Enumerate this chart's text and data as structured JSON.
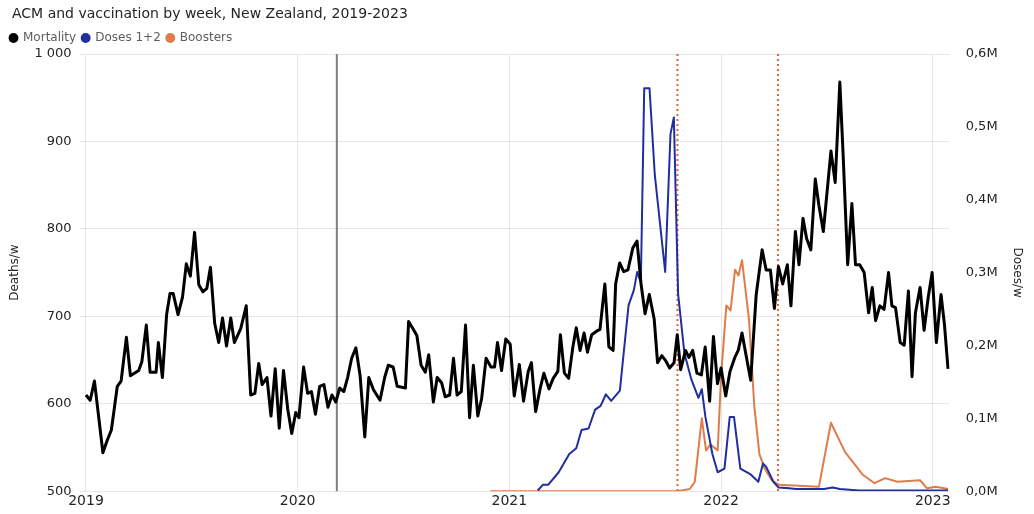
{
  "chart_data": {
    "type": "line",
    "title": "ACM and vaccination by week, New Zealand, 2019-2023",
    "ylabel": "Deaths/w",
    "y2label": "Doses/w",
    "xlim": [
      2018.97,
      2023.08
    ],
    "xticks": [
      2019,
      2020,
      2021,
      2022,
      2023
    ],
    "ylim": [
      500,
      1000
    ],
    "yticks": [
      500,
      600,
      700,
      800,
      900,
      {
        "value": 1000,
        "label": "1 000"
      }
    ],
    "y2lim": [
      0,
      0.6
    ],
    "y2ticks": [
      {
        "value": 0,
        "label": "0,0M"
      },
      {
        "value": 0.1,
        "label": "0,1M"
      },
      {
        "value": 0.2,
        "label": "0,2M"
      },
      {
        "value": 0.3,
        "label": "0,3M"
      },
      {
        "value": 0.4,
        "label": "0,4M"
      },
      {
        "value": 0.5,
        "label": "0,5M"
      },
      {
        "value": 0.6,
        "label": "0,6M"
      }
    ],
    "grid": true,
    "legend": "top left",
    "marker": "none",
    "line_style": "solid",
    "ref_lines": [
      {
        "axis": "x",
        "value": 2020.185,
        "color": "#808080",
        "line_style": "solid"
      },
      {
        "axis": "x",
        "value": 2021.794,
        "color": "#e0653a",
        "line_style": "dotted"
      },
      {
        "axis": "x",
        "value": 2022.269,
        "color": "#e0653a",
        "line_style": "dotted"
      }
    ],
    "series": [
      {
        "name": "Mortality",
        "color": "#000000",
        "x": [
          2019.0,
          2019.02,
          2019.04,
          2019.08,
          2019.1,
          2019.12,
          2019.148,
          2019.166,
          2019.191,
          2019.21,
          2019.249,
          2019.264,
          2019.285,
          2019.303,
          2019.331,
          2019.342,
          2019.361,
          2019.381,
          2019.397,
          2019.412,
          2019.435,
          2019.456,
          2019.474,
          2019.493,
          2019.513,
          2019.533,
          2019.552,
          2019.571,
          2019.588,
          2019.608,
          2019.627,
          2019.645,
          2019.664,
          2019.684,
          2019.701,
          2019.731,
          2019.757,
          2019.778,
          2019.798,
          2019.816,
          2019.832,
          2019.855,
          2019.874,
          2019.894,
          2019.913,
          2019.933,
          2019.953,
          2019.972,
          2019.991,
          2020.006,
          2020.028,
          2020.047,
          2020.065,
          2020.084,
          2020.104,
          2020.124,
          2020.143,
          2020.162,
          2020.18,
          2020.199,
          2020.218,
          2020.236,
          2020.255,
          2020.275,
          2020.295,
          2020.317,
          2020.336,
          2020.358,
          2020.389,
          2020.411,
          2020.428,
          2020.451,
          2020.47,
          2020.509,
          2020.524,
          2020.544,
          2020.563,
          2020.583,
          2020.603,
          2020.619,
          2020.641,
          2020.659,
          2020.68,
          2020.697,
          2020.718,
          2020.736,
          2020.753,
          2020.773,
          2020.793,
          2020.812,
          2020.83,
          2020.851,
          2020.869,
          2020.89,
          2020.913,
          2020.93,
          2020.944,
          2020.963,
          2020.983,
          2021.004,
          2021.023,
          2021.047,
          2021.067,
          2021.089,
          2021.104,
          2021.124,
          2021.145,
          2021.163,
          2021.187,
          2021.207,
          2021.229,
          2021.241,
          2021.26,
          2021.28,
          2021.3,
          2021.316,
          2021.334,
          2021.353,
          2021.369,
          2021.389,
          2021.412,
          2021.428,
          2021.451,
          2021.47,
          2021.49,
          2021.502,
          2021.521,
          2021.54,
          2021.56,
          2021.583,
          2021.603,
          2021.622,
          2021.641,
          2021.661,
          2021.684,
          2021.7,
          2021.72,
          2021.739,
          2021.757,
          2021.778,
          2021.793,
          2021.809,
          2021.832,
          2021.848,
          2021.866,
          2021.886,
          2021.907,
          2021.925,
          2021.946,
          2021.964,
          2021.983,
          2022.0,
          2022.022,
          2022.042,
          2022.065,
          2022.081,
          2022.099,
          2022.12,
          2022.14,
          2022.166,
          2022.194,
          2022.213,
          2022.233,
          2022.252,
          2022.271,
          2022.291,
          2022.313,
          2022.33,
          2022.351,
          2022.368,
          2022.387,
          2022.404,
          2022.424,
          2022.445,
          2022.462,
          2022.483,
          2022.519,
          2022.539,
          2022.561,
          2022.577,
          2022.598,
          2022.618,
          2022.635,
          2022.655,
          2022.676,
          2022.697,
          2022.714,
          2022.73,
          2022.75,
          2022.77,
          2022.791,
          2022.807,
          2022.824,
          2022.846,
          2022.865,
          2022.885,
          2022.902,
          2022.918,
          2022.94,
          2022.959,
          2022.978,
          2022.997,
          2023.017,
          2023.039,
          2023.055,
          2023.072
        ],
        "values": [
          610,
          604,
          626,
          544,
          558,
          570,
          620,
          626,
          676,
          632,
          638,
          648,
          690,
          636,
          636,
          670,
          630,
          702,
          726,
          726,
          702,
          722,
          760,
          746,
          796,
          736,
          728,
          732,
          756,
          692,
          670,
          698,
          666,
          698,
          670,
          686,
          712,
          610,
          612,
          646,
          622,
          630,
          586,
          640,
          572,
          638,
          594,
          566,
          590,
          584,
          642,
          612,
          614,
          588,
          620,
          622,
          596,
          610,
          602,
          618,
          614,
          630,
          652,
          664,
          632,
          562,
          630,
          616,
          604,
          630,
          644,
          642,
          620,
          618,
          694,
          686,
          678,
          644,
          636,
          656,
          602,
          630,
          624,
          608,
          610,
          652,
          610,
          614,
          690,
          584,
          644,
          586,
          606,
          652,
          642,
          642,
          670,
          638,
          674,
          668,
          609,
          645,
          603,
          637,
          647,
          591,
          617,
          635,
          617,
          629,
          637,
          679,
          635,
          629,
          665,
          687,
          661,
          681,
          659,
          679,
          683,
          685,
          737,
          665,
          661,
          737,
          761,
          751,
          753,
          778,
          786,
          737,
          703,
          725,
          697,
          647,
          655,
          649,
          641,
          647,
          679,
          639,
          661,
          653,
          661,
          635,
          633,
          665,
          603,
          677,
          623,
          641,
          609,
          637,
          653,
          661,
          681,
          653,
          627,
          725,
          776,
          753,
          753,
          709,
          757,
          737,
          759,
          712,
          797,
          759,
          812,
          789,
          776,
          857,
          827,
          797,
          889,
          853,
          968,
          882,
          759,
          829,
          759,
          759,
          750,
          704,
          733,
          695,
          712,
          708,
          750,
          712,
          710,
          670,
          667,
          729,
          631,
          704,
          733,
          684,
          721,
          750,
          670,
          725,
          691,
          640
        ]
      },
      {
        "name": "Doses 1+2",
        "color": "#1f2fa0",
        "axis": "y2",
        "x": [
          2021.134,
          2021.159,
          2021.184,
          2021.233,
          2021.283,
          2021.316,
          2021.341,
          2021.374,
          2021.405,
          2021.431,
          2021.456,
          2021.481,
          2021.522,
          2021.538,
          2021.563,
          2021.588,
          2021.604,
          2021.621,
          2021.637,
          2021.662,
          2021.687,
          2021.736,
          2021.761,
          2021.777,
          2021.797,
          2021.827,
          2021.86,
          2021.893,
          2021.909,
          2021.926,
          2021.959,
          2021.984,
          2022.016,
          2022.041,
          2022.061,
          2022.091,
          2022.14,
          2022.176,
          2022.198,
          2022.214,
          2022.247,
          2022.272,
          2022.321,
          2022.354,
          2022.486,
          2022.527,
          2022.561,
          2022.651,
          2023.072
        ],
        "values": [
          0.001,
          0.009,
          0.009,
          0.026,
          0.051,
          0.059,
          0.084,
          0.086,
          0.112,
          0.117,
          0.133,
          0.124,
          0.138,
          0.184,
          0.255,
          0.276,
          0.301,
          0.286,
          0.553,
          0.553,
          0.434,
          0.301,
          0.49,
          0.513,
          0.271,
          0.189,
          0.153,
          0.128,
          0.14,
          0.102,
          0.051,
          0.026,
          0.031,
          0.102,
          0.102,
          0.031,
          0.023,
          0.013,
          0.038,
          0.033,
          0.013,
          0.005,
          0.004,
          0.003,
          0.003,
          0.005,
          0.003,
          0.001,
          0.001
        ]
      },
      {
        "name": "Boosters",
        "color": "#e07b4a",
        "axis": "y2",
        "x": [
          2020.91,
          2021.794,
          2021.852,
          2021.876,
          2021.909,
          2021.929,
          2021.95,
          2021.984,
          2022.0,
          2022.025,
          2022.045,
          2022.066,
          2022.082,
          2022.099,
          2022.132,
          2022.157,
          2022.181,
          2022.206,
          2022.239,
          2022.272,
          2022.321,
          2022.462,
          2022.519,
          2022.585,
          2022.668,
          2022.725,
          2022.775,
          2022.833,
          2022.94,
          2022.973,
          2023.014,
          2023.072
        ],
        "values": [
          0,
          0,
          0.003,
          0.013,
          0.1,
          0.056,
          0.064,
          0.056,
          0.158,
          0.255,
          0.248,
          0.304,
          0.296,
          0.317,
          0.235,
          0.117,
          0.051,
          0.031,
          0.015,
          0.009,
          0.008,
          0.006,
          0.094,
          0.054,
          0.023,
          0.011,
          0.018,
          0.013,
          0.015,
          0.004,
          0.006,
          0.003
        ]
      }
    ]
  }
}
